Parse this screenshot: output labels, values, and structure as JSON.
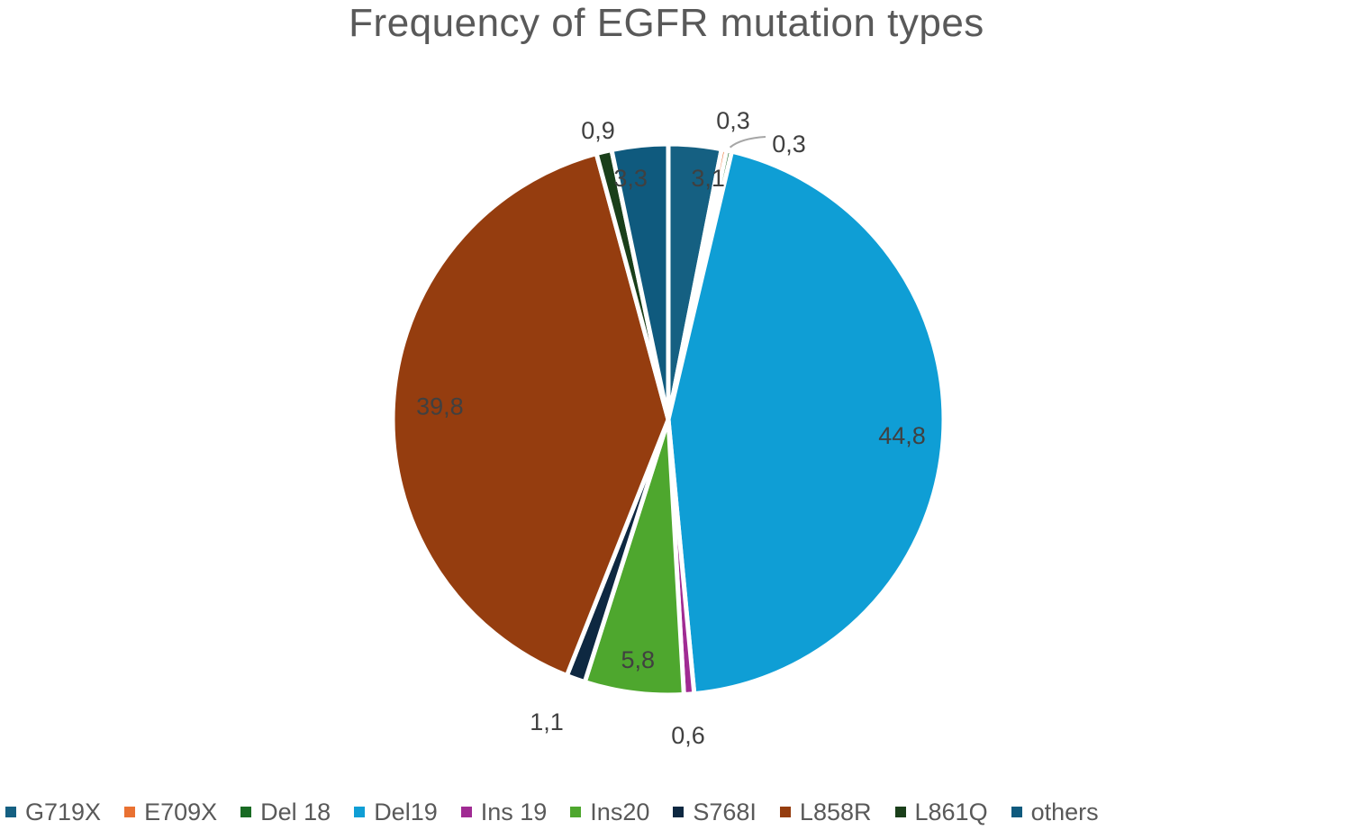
{
  "chart_data": {
    "type": "pie",
    "title": "Frequency of EGFR mutation types",
    "labels": [
      "G719X",
      "E709X",
      "Del 18",
      "Del19",
      "Ins 19",
      "Ins20",
      "S768I",
      "L858R",
      "L861Q",
      "others"
    ],
    "values": [
      3.1,
      0.3,
      0.3,
      44.8,
      0.6,
      5.8,
      1.1,
      39.8,
      0.9,
      3.3
    ],
    "value_labels": [
      "3,1",
      "0,3",
      "0,3",
      "44,8",
      "0,6",
      "5,8",
      "1,1",
      "39,8",
      "0,9",
      "3,3"
    ],
    "colors": [
      "#156082",
      "#E97132",
      "#196B24",
      "#0F9ED5",
      "#A02B93",
      "#4EA72E",
      "#0E2841",
      "#953D0F",
      "#1A3F1A",
      "#0F5A7E"
    ],
    "start_angle_deg": 0,
    "direction": "clockwise",
    "legend_position": "bottom"
  }
}
